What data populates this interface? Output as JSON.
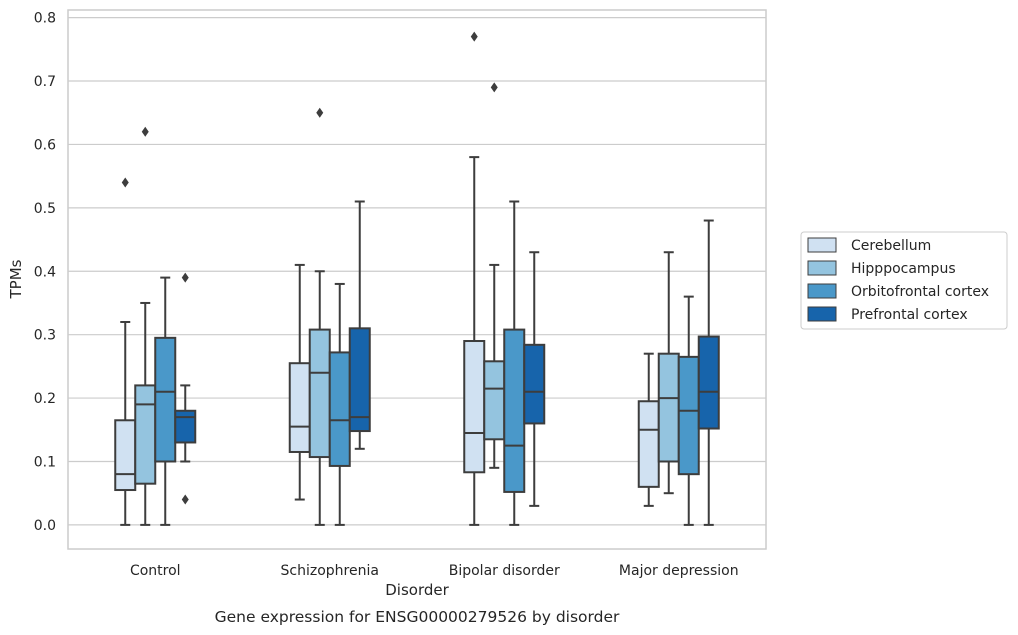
{
  "chart_data": {
    "type": "box",
    "xlabel": "Disorder",
    "ylabel": "TPMs",
    "caption": "Gene expression for ENSG00000279526 by disorder",
    "ylim": [
      -0.038,
      0.812
    ],
    "yticks": [
      0.0,
      0.1,
      0.2,
      0.3,
      0.4,
      0.5,
      0.6,
      0.7,
      0.8
    ],
    "ytick_labels": [
      "0.0",
      "0.1",
      "0.2",
      "0.3",
      "0.4",
      "0.5",
      "0.6",
      "0.7",
      "0.8"
    ],
    "grid": true,
    "legend_placement": "right",
    "categories": [
      "Control",
      "Schizophrenia",
      "Bipolar disorder",
      "Major depression"
    ],
    "series": [
      {
        "name": "Cerebellum",
        "color": "#d0e1f2",
        "boxes": [
          {
            "q1": 0.055,
            "median": 0.08,
            "q3": 0.165,
            "whisker_low": 0.0,
            "whisker_high": 0.32,
            "outliers": [
              0.54
            ]
          },
          {
            "q1": 0.115,
            "median": 0.155,
            "q3": 0.255,
            "whisker_low": 0.04,
            "whisker_high": 0.41,
            "outliers": []
          },
          {
            "q1": 0.083,
            "median": 0.145,
            "q3": 0.29,
            "whisker_low": 0.0,
            "whisker_high": 0.58,
            "outliers": [
              0.77
            ]
          },
          {
            "q1": 0.06,
            "median": 0.15,
            "q3": 0.195,
            "whisker_low": 0.03,
            "whisker_high": 0.27,
            "outliers": []
          }
        ]
      },
      {
        "name": "Hipppocampus",
        "color": "#94c4df",
        "boxes": [
          {
            "q1": 0.065,
            "median": 0.19,
            "q3": 0.22,
            "whisker_low": 0.0,
            "whisker_high": 0.35,
            "outliers": [
              0.62
            ]
          },
          {
            "q1": 0.107,
            "median": 0.24,
            "q3": 0.308,
            "whisker_low": 0.0,
            "whisker_high": 0.4,
            "outliers": [
              0.65
            ]
          },
          {
            "q1": 0.135,
            "median": 0.215,
            "q3": 0.258,
            "whisker_low": 0.09,
            "whisker_high": 0.41,
            "outliers": [
              0.69
            ]
          },
          {
            "q1": 0.1,
            "median": 0.2,
            "q3": 0.27,
            "whisker_low": 0.05,
            "whisker_high": 0.43,
            "outliers": []
          }
        ]
      },
      {
        "name": "Orbitofrontal cortex",
        "color": "#4a98c9",
        "boxes": [
          {
            "q1": 0.1,
            "median": 0.21,
            "q3": 0.295,
            "whisker_low": 0.0,
            "whisker_high": 0.39,
            "outliers": []
          },
          {
            "q1": 0.093,
            "median": 0.165,
            "q3": 0.272,
            "whisker_low": 0.0,
            "whisker_high": 0.38,
            "outliers": []
          },
          {
            "q1": 0.052,
            "median": 0.125,
            "q3": 0.308,
            "whisker_low": 0.0,
            "whisker_high": 0.51,
            "outliers": []
          },
          {
            "q1": 0.08,
            "median": 0.18,
            "q3": 0.265,
            "whisker_low": 0.0,
            "whisker_high": 0.36,
            "outliers": []
          }
        ]
      },
      {
        "name": "Prefrontal cortex",
        "color": "#1764ab",
        "boxes": [
          {
            "q1": 0.13,
            "median": 0.17,
            "q3": 0.18,
            "whisker_low": 0.1,
            "whisker_high": 0.22,
            "outliers": [
              0.39,
              0.04
            ]
          },
          {
            "q1": 0.148,
            "median": 0.17,
            "q3": 0.31,
            "whisker_low": 0.12,
            "whisker_high": 0.51,
            "outliers": []
          },
          {
            "q1": 0.16,
            "median": 0.21,
            "q3": 0.284,
            "whisker_low": 0.03,
            "whisker_high": 0.43,
            "outliers": []
          },
          {
            "q1": 0.152,
            "median": 0.21,
            "q3": 0.297,
            "whisker_low": 0.0,
            "whisker_high": 0.48,
            "outliers": []
          }
        ]
      }
    ]
  }
}
